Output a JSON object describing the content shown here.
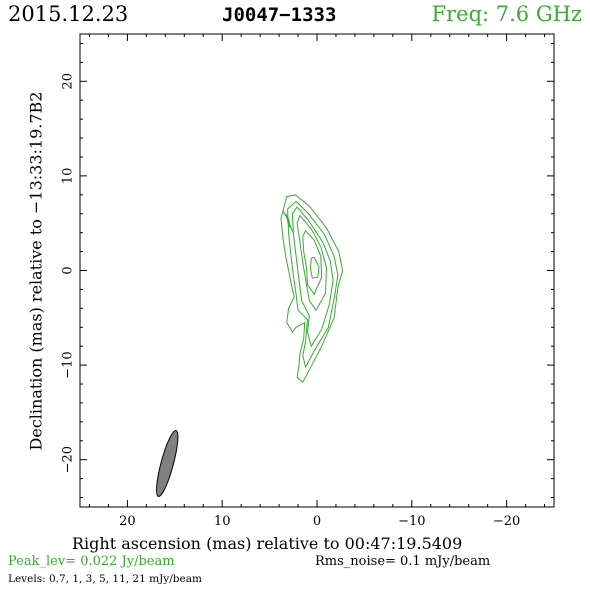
{
  "header": {
    "date": "2015.12.23",
    "source": "J0047−1333",
    "frequency": "Freq: 7.6 GHz"
  },
  "footer": {
    "peak": "Peak_lev=  0.022 Jy/beam",
    "rms": "Rms_noise=   0.1 mJy/beam",
    "levels": "Levels: 0.7,    1,    3,    5,   11,   21  mJy/beam"
  },
  "colors": {
    "contour": "#3aa832",
    "beam": "#808080",
    "text_green": "#3aa832"
  },
  "chart_data": {
    "type": "contour",
    "xlabel": "Right ascension (mas) relative to 00:47:19.5409",
    "ylabel": "Declination (mas) relative to −13:33:19.7B2",
    "xlim": [
      25,
      -25
    ],
    "ylim": [
      -25,
      25
    ],
    "xticks": [
      20,
      10,
      0,
      -10,
      -20
    ],
    "xtick_labels": [
      "20",
      "10",
      "0",
      "−10",
      "−20"
    ],
    "yticks": [
      20,
      10,
      0,
      -10,
      -20
    ],
    "ytick_labels": [
      "20",
      "10",
      "0",
      "−10",
      "−20"
    ],
    "levels_mJy": [
      0.7,
      1,
      3,
      5,
      11,
      21
    ],
    "contours": [
      [
        [
          2.3,
          8.0
        ],
        [
          0.8,
          6.8
        ],
        [
          -1.0,
          4.5
        ],
        [
          -2.3,
          2.0
        ],
        [
          -2.7,
          0.0
        ],
        [
          -2.2,
          -1.8
        ],
        [
          -1.8,
          -5.0
        ],
        [
          -0.5,
          -8.0
        ],
        [
          0.8,
          -10.5
        ],
        [
          1.5,
          -11.8
        ],
        [
          2.1,
          -11.3
        ],
        [
          1.9,
          -10.0
        ],
        [
          1.8,
          -8.8
        ],
        [
          1.4,
          -7.2
        ],
        [
          1.3,
          -5.5
        ],
        [
          2.2,
          -6.0
        ],
        [
          2.6,
          -6.5
        ],
        [
          3.2,
          -5.5
        ],
        [
          3.0,
          -4.0
        ],
        [
          2.4,
          -2.8
        ],
        [
          2.7,
          -1.5
        ],
        [
          3.0,
          0.0
        ],
        [
          3.3,
          1.5
        ],
        [
          3.6,
          3.5
        ],
        [
          3.8,
          5.5
        ],
        [
          3.2,
          7.8
        ]
      ],
      [
        [
          2.2,
          7.3
        ],
        [
          0.9,
          6.0
        ],
        [
          -0.8,
          3.8
        ],
        [
          -1.8,
          1.5
        ],
        [
          -2.2,
          -0.5
        ],
        [
          -1.8,
          -3.0
        ],
        [
          -1.2,
          -6.0
        ],
        [
          0.3,
          -8.5
        ],
        [
          1.2,
          -10.2
        ],
        [
          1.5,
          -9.0
        ],
        [
          1.2,
          -7.5
        ],
        [
          1.0,
          -5.2
        ],
        [
          2.0,
          -4.2
        ],
        [
          2.2,
          -2.5
        ],
        [
          2.5,
          -0.5
        ],
        [
          2.8,
          2.0
        ],
        [
          3.0,
          4.0
        ],
        [
          3.1,
          6.5
        ]
      ],
      [
        [
          2.1,
          6.7
        ],
        [
          0.9,
          5.3
        ],
        [
          -0.6,
          3.0
        ],
        [
          -1.4,
          1.0
        ],
        [
          -1.7,
          -1.0
        ],
        [
          -1.3,
          -3.6
        ],
        [
          -0.5,
          -6.2
        ],
        [
          0.6,
          -8.0
        ],
        [
          1.0,
          -6.5
        ],
        [
          0.8,
          -4.8
        ],
        [
          1.6,
          -3.2
        ],
        [
          1.9,
          -1.0
        ],
        [
          2.2,
          1.5
        ],
        [
          2.5,
          4.0
        ],
        [
          2.6,
          6.0
        ]
      ],
      [
        [
          1.8,
          5.8
        ],
        [
          0.6,
          4.4
        ],
        [
          -0.4,
          2.5
        ],
        [
          -1.0,
          0.3
        ],
        [
          -0.9,
          -2.4
        ],
        [
          0.1,
          -4.2
        ],
        [
          0.8,
          -3.2
        ],
        [
          1.1,
          -1.5
        ],
        [
          1.5,
          0.8
        ],
        [
          1.8,
          3.0
        ],
        [
          2.1,
          5.0
        ]
      ],
      [
        [
          1.2,
          4.2
        ],
        [
          0.3,
          3.2
        ],
        [
          -0.4,
          1.5
        ],
        [
          -0.5,
          -0.7
        ],
        [
          0.3,
          -2.5
        ],
        [
          1.0,
          -1.5
        ],
        [
          1.1,
          0.2
        ],
        [
          1.4,
          2.0
        ],
        [
          1.5,
          3.6
        ]
      ],
      [
        [
          0.3,
          1.4
        ],
        [
          -0.2,
          0.4
        ],
        [
          -0.1,
          -0.7
        ],
        [
          0.5,
          -0.8
        ],
        [
          0.7,
          0.3
        ],
        [
          0.6,
          1.3
        ]
      ],
      [
        [
          3.3,
          6.0
        ],
        [
          3.0,
          5.4
        ],
        [
          2.8,
          4.5
        ],
        [
          3.0,
          4.8
        ],
        [
          3.2,
          5.6
        ]
      ],
      [
        [
          3.6,
          6.3
        ],
        [
          3.1,
          5.5
        ],
        [
          2.7,
          4.4
        ],
        [
          2.5,
          4.0
        ],
        [
          2.8,
          4.6
        ],
        [
          3.2,
          5.6
        ]
      ]
    ],
    "beam": {
      "center": [
        15.8,
        -20.4
      ],
      "major_mas": 7.2,
      "minor_mas": 1.3,
      "pa_deg": 15
    }
  }
}
